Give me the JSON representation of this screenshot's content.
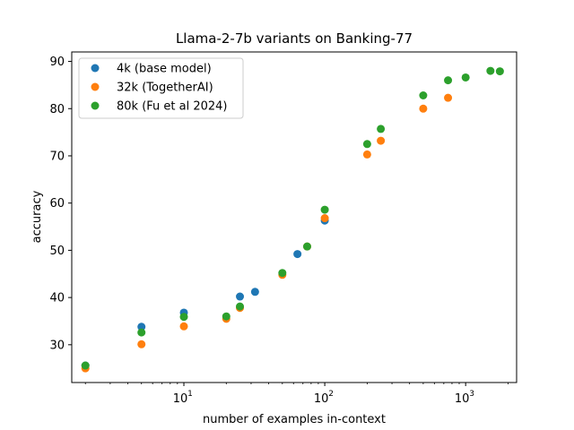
{
  "chart_data": {
    "type": "scatter",
    "title": "Llama-2-7b variants on Banking-77",
    "xlabel": "number of examples in-context",
    "ylabel": "accuracy",
    "xscale": "log",
    "xlim": [
      1.6,
      2300
    ],
    "ylim": [
      22,
      92
    ],
    "x_ticks": [
      {
        "value": 10,
        "label": "10",
        "exp": "1"
      },
      {
        "value": 100,
        "label": "10",
        "exp": "2"
      },
      {
        "value": 1000,
        "label": "10",
        "exp": "3"
      }
    ],
    "y_ticks": [
      30,
      40,
      50,
      60,
      70,
      80,
      90
    ],
    "grid": false,
    "legend_position": "top-left",
    "series": [
      {
        "name": "4k (base model)",
        "color": "#1f77b4",
        "points": [
          [
            2,
            25.6
          ],
          [
            5,
            33.8
          ],
          [
            10,
            36.8
          ],
          [
            25,
            40.2
          ],
          [
            32,
            41.2
          ],
          [
            64,
            49.2
          ],
          [
            100,
            56.3
          ]
        ]
      },
      {
        "name": "32k (TogetherAI)",
        "color": "#ff7f0e",
        "points": [
          [
            2,
            25.0
          ],
          [
            5,
            30.1
          ],
          [
            10,
            33.9
          ],
          [
            20,
            35.5
          ],
          [
            25,
            37.8
          ],
          [
            50,
            44.8
          ],
          [
            75,
            50.8
          ],
          [
            100,
            56.8
          ],
          [
            200,
            70.3
          ],
          [
            250,
            73.2
          ],
          [
            500,
            80.0
          ],
          [
            750,
            82.3
          ]
        ]
      },
      {
        "name": "80k (Fu et al 2024)",
        "color": "#2ca02c",
        "points": [
          [
            2,
            25.6
          ],
          [
            5,
            32.6
          ],
          [
            10,
            35.9
          ],
          [
            20,
            36.0
          ],
          [
            25,
            38.1
          ],
          [
            50,
            45.2
          ],
          [
            75,
            50.8
          ],
          [
            100,
            58.6
          ],
          [
            200,
            72.5
          ],
          [
            250,
            75.7
          ],
          [
            500,
            82.8
          ],
          [
            750,
            86.0
          ],
          [
            1000,
            86.6
          ],
          [
            1500,
            88.0
          ],
          [
            1750,
            87.9
          ]
        ]
      }
    ]
  }
}
